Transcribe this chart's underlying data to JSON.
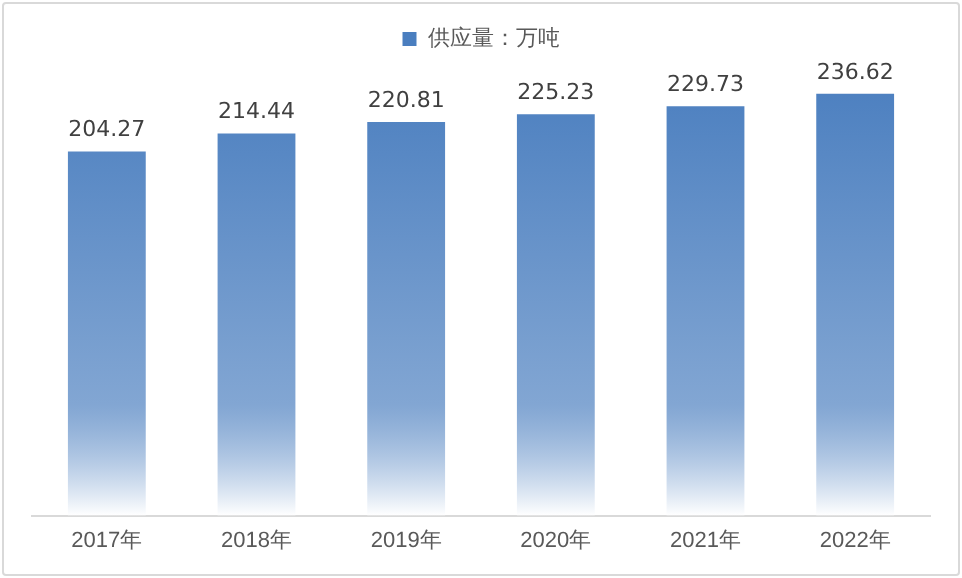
{
  "chart_data": {
    "type": "bar",
    "categories": [
      "2017年",
      "2018年",
      "2019年",
      "2020年",
      "2021年",
      "2022年"
    ],
    "series": [
      {
        "name": "供应量：万吨",
        "color": "#4a7ebf",
        "values": [
          204.27,
          214.44,
          220.81,
          225.23,
          229.73,
          236.62
        ]
      }
    ],
    "data_labels": true,
    "legend": "top",
    "grid": false,
    "tick_labels": "x"
  }
}
